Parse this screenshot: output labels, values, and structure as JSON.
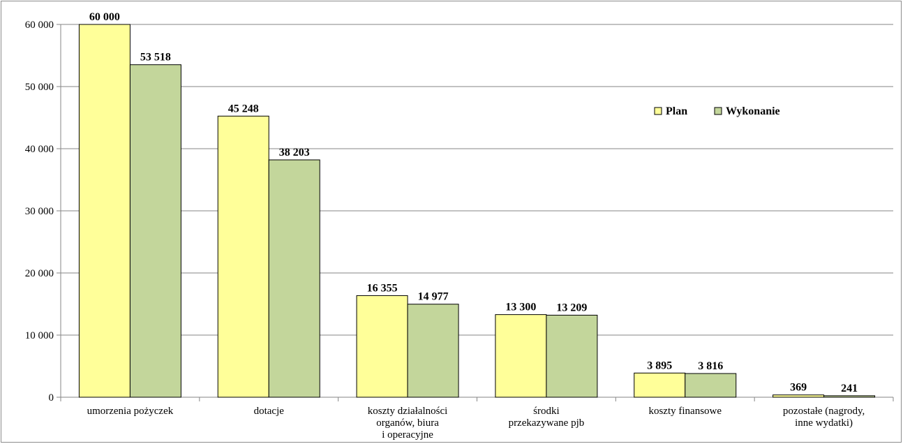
{
  "chart_data": {
    "type": "bar",
    "categories": [
      [
        "umorzenia pożyczek"
      ],
      [
        "dotacje"
      ],
      [
        "koszty działalności",
        "organów, biura",
        "i operacyjne"
      ],
      [
        "środki",
        "przekazywane pjb"
      ],
      [
        "koszty finansowe"
      ],
      [
        "pozostałe (nagrody,",
        "inne wydatki)"
      ]
    ],
    "series": [
      {
        "name": "Plan",
        "color": "#ffff99",
        "values": [
          60000,
          45248,
          16355,
          13300,
          3895,
          369
        ],
        "labels": [
          "60 000",
          "45 248",
          "16 355",
          "13 300",
          "3 895",
          "369"
        ]
      },
      {
        "name": "Wykonanie",
        "color": "#c3d69b",
        "values": [
          53518,
          38203,
          14977,
          13209,
          3816,
          241
        ],
        "labels": [
          "53 518",
          "38 203",
          "14 977",
          "13 209",
          "3 816",
          "241"
        ]
      }
    ],
    "y_ticks": [
      0,
      10000,
      20000,
      30000,
      40000,
      50000,
      60000
    ],
    "y_tick_labels": [
      "0",
      "10 000",
      "20 000",
      "30 000",
      "40 000",
      "50 000",
      "60 000"
    ],
    "ylim": [
      0,
      60000
    ],
    "grid": true,
    "legend_position": "top-right",
    "title": "",
    "xlabel": "",
    "ylabel": ""
  }
}
